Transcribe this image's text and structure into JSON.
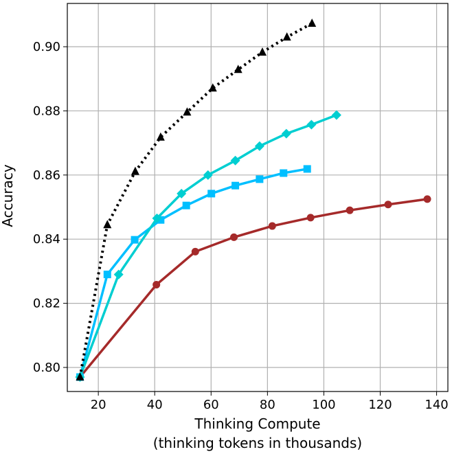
{
  "chart_data": {
    "type": "line",
    "title": "",
    "xlabel": "Thinking Compute",
    "xlabel2": "(thinking tokens in thousands)",
    "ylabel": "Accuracy",
    "xlim": [
      9,
      144
    ],
    "ylim": [
      0.7925,
      0.9135
    ],
    "xticks": [
      20,
      40,
      60,
      80,
      100,
      120,
      140
    ],
    "yticks": [
      0.8,
      0.82,
      0.84,
      0.86,
      0.88,
      0.9
    ],
    "ytick_labels": [
      "0.80",
      "0.82",
      "0.84",
      "0.86",
      "0.88",
      "0.90"
    ],
    "grid": true,
    "series": [
      {
        "name": "red",
        "color": "#a52a2a",
        "marker": "circle",
        "dash": false,
        "x": [
          13.5,
          40.6,
          54.4,
          68.1,
          81.7,
          95.3,
          109.2,
          122.8,
          136.7
        ],
        "y": [
          0.797,
          0.8258,
          0.8361,
          0.8406,
          0.8441,
          0.8467,
          0.849,
          0.8508,
          0.8525
        ]
      },
      {
        "name": "blue",
        "color": "#00bfff",
        "marker": "square",
        "dash": false,
        "x": [
          13.5,
          23.2,
          32.9,
          42.1,
          51.2,
          60.1,
          68.6,
          77.2,
          85.7,
          94.1
        ],
        "y": [
          0.797,
          0.829,
          0.8398,
          0.846,
          0.8505,
          0.8542,
          0.8567,
          0.8587,
          0.8606,
          0.8619
        ]
      },
      {
        "name": "teal",
        "color": "#00ced1",
        "marker": "diamond",
        "dash": false,
        "x": [
          13.5,
          27.2,
          40.8,
          49.5,
          58.9,
          68.6,
          77.2,
          86.7,
          95.6,
          104.5
        ],
        "y": [
          0.797,
          0.829,
          0.8465,
          0.8542,
          0.86,
          0.8645,
          0.869,
          0.8729,
          0.8757,
          0.8787
        ]
      },
      {
        "name": "black",
        "color": "#000000",
        "marker": "triangle",
        "dash": true,
        "x": [
          13.5,
          23.2,
          33.1,
          42.1,
          51.5,
          60.6,
          69.6,
          78.2,
          86.9,
          95.8
        ],
        "y": [
          0.797,
          0.8445,
          0.8611,
          0.8718,
          0.8796,
          0.8871,
          0.8929,
          0.8983,
          0.903,
          0.9073
        ]
      }
    ]
  }
}
